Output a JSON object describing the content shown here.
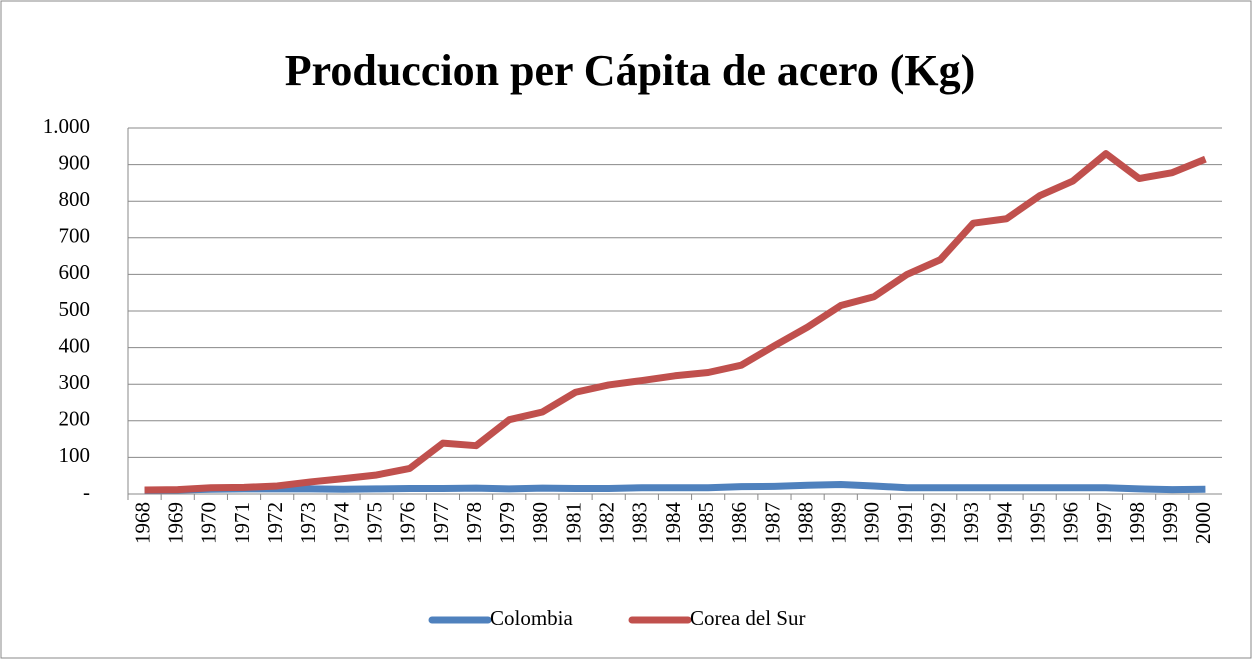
{
  "chart_data": {
    "type": "line",
    "title": "Produccion per Cápita de acero (Kg)",
    "categories": [
      "1968",
      "1969",
      "1970",
      "1971",
      "1972",
      "1973",
      "1974",
      "1975",
      "1976",
      "1977",
      "1978",
      "1979",
      "1980",
      "1981",
      "1982",
      "1983",
      "1984",
      "1985",
      "1986",
      "1987",
      "1988",
      "1989",
      "1990",
      "1991",
      "1992",
      "1993",
      "1994",
      "1995",
      "1996",
      "1997",
      "1998",
      "1999",
      "2000"
    ],
    "series": [
      {
        "name": "Colombia",
        "color": "#4f81bd",
        "values": [
          10,
          11,
          13,
          14,
          14,
          14,
          13,
          14,
          15,
          15,
          16,
          14,
          16,
          15,
          15,
          17,
          17,
          17,
          20,
          21,
          24,
          26,
          22,
          17,
          17,
          17,
          17,
          17,
          17,
          17,
          14,
          12,
          13
        ]
      },
      {
        "name": "Corea del Sur",
        "color": "#c0504d",
        "values": [
          11,
          12,
          17,
          18,
          22,
          33,
          42,
          52,
          70,
          139,
          132,
          203,
          224,
          278,
          298,
          310,
          323,
          332,
          352,
          405,
          456,
          515,
          539,
          600,
          640,
          740,
          752,
          815,
          855,
          930,
          862,
          878,
          915
        ]
      }
    ],
    "ylim": [
      0,
      1000
    ],
    "yticks": [
      {
        "value": 0,
        "label": "-"
      },
      100,
      200,
      300,
      400,
      500,
      600,
      700,
      800,
      900,
      {
        "value": 1000,
        "label": "1.000"
      }
    ],
    "grid": true,
    "legend": "bottom"
  }
}
